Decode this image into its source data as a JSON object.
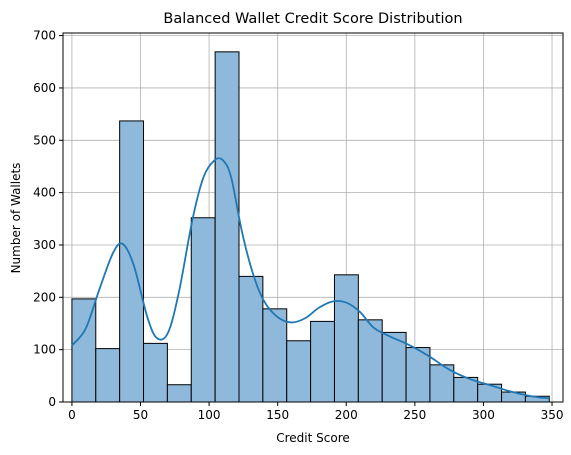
{
  "chart_data": {
    "type": "bar",
    "title": "Balanced Wallet Credit Score Distribution",
    "xlabel": "Credit Score",
    "ylabel": "Number of Wallets",
    "xlim": [
      -6.5,
      358
    ],
    "ylim": [
      0,
      705
    ],
    "grid": true,
    "x_ticks": [
      0,
      50,
      100,
      150,
      200,
      250,
      300,
      350
    ],
    "y_ticks": [
      0,
      100,
      200,
      300,
      400,
      500,
      600,
      700
    ],
    "bins": [
      {
        "start": 0,
        "end": 17.4,
        "count": 197
      },
      {
        "start": 17.4,
        "end": 34.8,
        "count": 102
      },
      {
        "start": 34.8,
        "end": 52.2,
        "count": 537
      },
      {
        "start": 52.2,
        "end": 69.6,
        "count": 112
      },
      {
        "start": 69.6,
        "end": 87.0,
        "count": 33
      },
      {
        "start": 87.0,
        "end": 104.4,
        "count": 352
      },
      {
        "start": 104.4,
        "end": 121.8,
        "count": 669
      },
      {
        "start": 121.8,
        "end": 139.2,
        "count": 240
      },
      {
        "start": 139.2,
        "end": 156.6,
        "count": 178
      },
      {
        "start": 156.6,
        "end": 174.0,
        "count": 117
      },
      {
        "start": 174.0,
        "end": 191.4,
        "count": 154
      },
      {
        "start": 191.4,
        "end": 208.8,
        "count": 243
      },
      {
        "start": 208.8,
        "end": 226.2,
        "count": 157
      },
      {
        "start": 226.2,
        "end": 243.6,
        "count": 133
      },
      {
        "start": 243.6,
        "end": 261.0,
        "count": 104
      },
      {
        "start": 261.0,
        "end": 278.4,
        "count": 71
      },
      {
        "start": 278.4,
        "end": 295.8,
        "count": 47
      },
      {
        "start": 295.8,
        "end": 313.2,
        "count": 34
      },
      {
        "start": 313.2,
        "end": 330.6,
        "count": 19
      },
      {
        "start": 330.6,
        "end": 348.0,
        "count": 11
      }
    ],
    "kde": {
      "x": [
        0,
        10,
        20,
        30,
        37,
        45,
        55,
        62,
        70,
        78,
        88,
        96,
        104,
        110,
        116,
        124,
        132,
        140,
        150,
        160,
        170,
        180,
        190,
        200,
        210,
        220,
        232,
        245,
        260,
        275,
        290,
        305,
        320,
        335,
        348
      ],
      "y": [
        108,
        140,
        215,
        285,
        302,
        262,
        162,
        122,
        132,
        210,
        350,
        430,
        462,
        462,
        430,
        325,
        245,
        193,
        162,
        152,
        160,
        180,
        192,
        190,
        172,
        142,
        125,
        110,
        88,
        62,
        44,
        32,
        20,
        11,
        7
      ]
    },
    "colors": {
      "bar_fill": "#8fb9db",
      "bar_edge": "#000000",
      "kde_line": "#1f77b4",
      "grid": "#b0b0b0"
    }
  }
}
